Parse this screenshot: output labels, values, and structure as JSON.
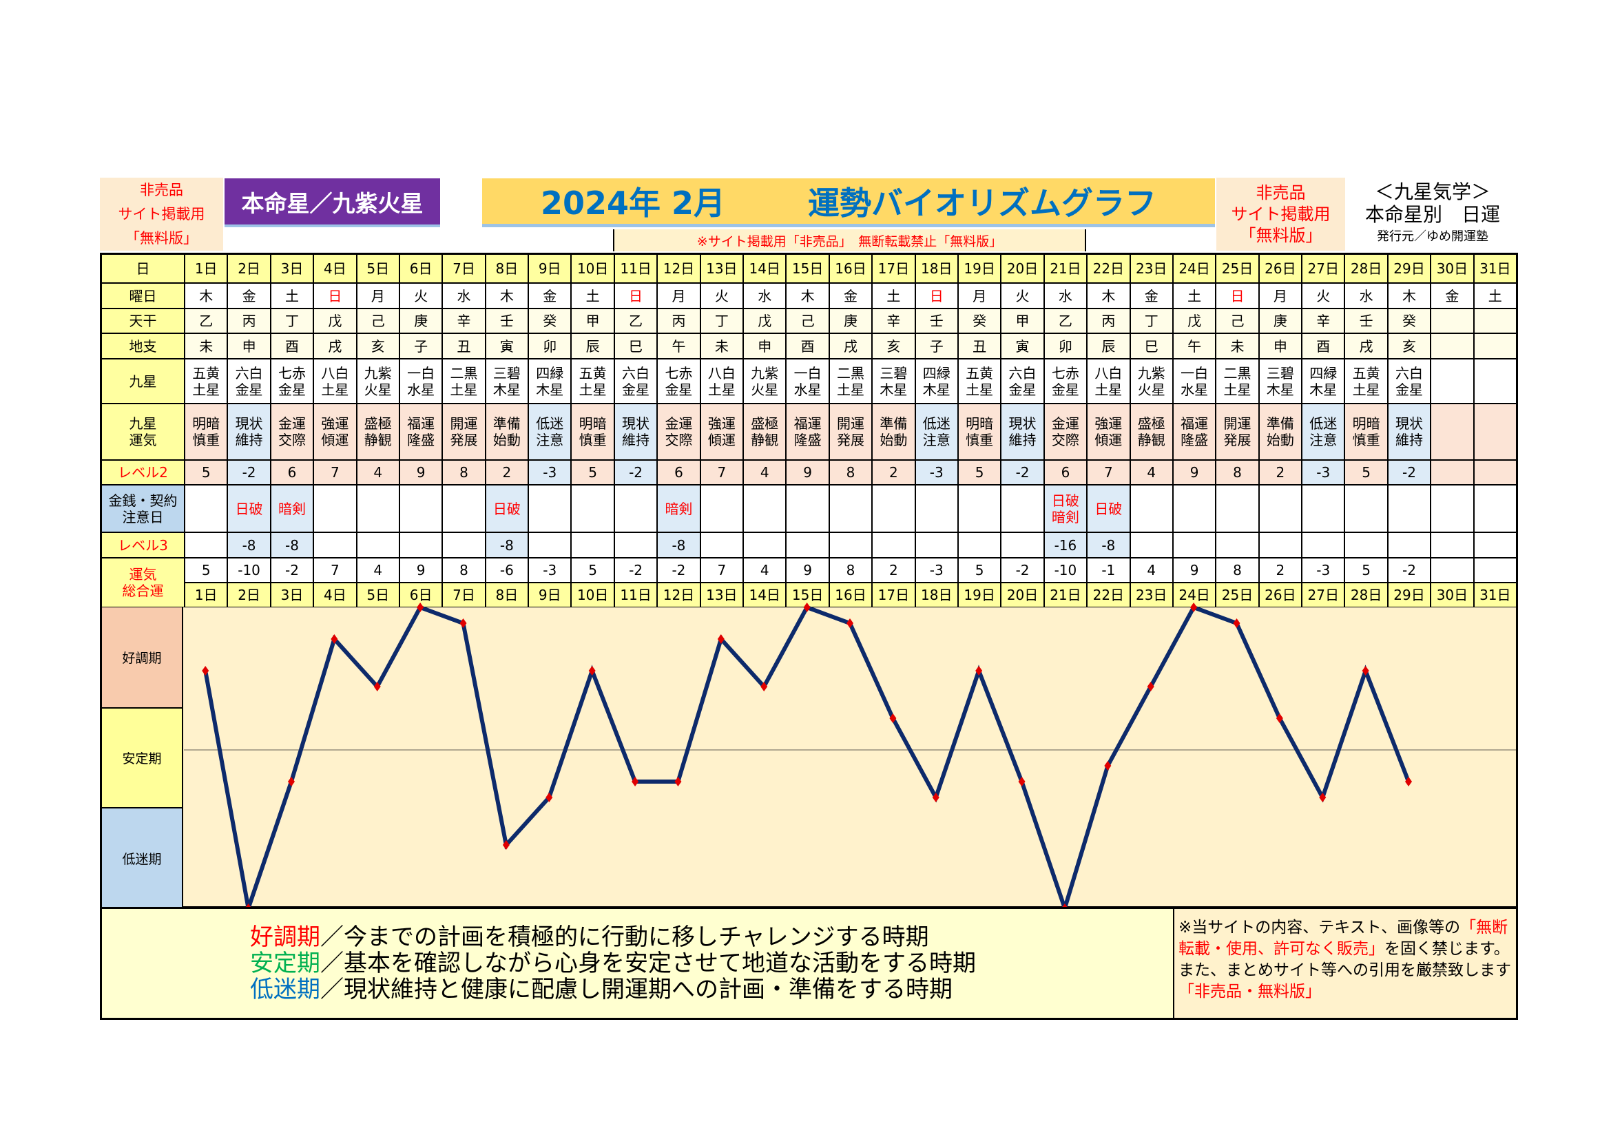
{
  "header": {
    "left_badge": [
      "非売品",
      "サイト掲載用",
      "「無料版」"
    ],
    "honmei": "本命星／九紫火星",
    "title_date": "2024年 2月",
    "title_main": "運勢バイオリズムグラフ",
    "notice": "※サイト掲載用「非売品」　無断転載禁止「無料版」",
    "right_badge": [
      "非売品",
      "サイト掲載用",
      "「無料版」"
    ],
    "right_title": "＜九星気学＞",
    "right_subtitle": "本命星別　日運",
    "publisher": "発行元／ゆめ開運塾"
  },
  "row_labels": {
    "day": "日",
    "weekday": "曜日",
    "tenkan": "天干",
    "chishi": "地支",
    "kyusei": "九星",
    "unki": "九星\n運気",
    "level2": "レベル2",
    "money": "金銭・契約\n注意日",
    "level3": "レベル3",
    "total": "運気\n総合運"
  },
  "days": [
    "1日",
    "2日",
    "3日",
    "4日",
    "5日",
    "6日",
    "7日",
    "8日",
    "9日",
    "10日",
    "11日",
    "12日",
    "13日",
    "14日",
    "15日",
    "16日",
    "17日",
    "18日",
    "19日",
    "20日",
    "21日",
    "22日",
    "23日",
    "24日",
    "25日",
    "26日",
    "27日",
    "28日",
    "29日",
    "30日",
    "31日"
  ],
  "weekdays": [
    "木",
    "金",
    "土",
    "日",
    "月",
    "火",
    "水",
    "木",
    "金",
    "土",
    "日",
    "月",
    "火",
    "水",
    "木",
    "金",
    "土",
    "日",
    "月",
    "火",
    "水",
    "木",
    "金",
    "土",
    "日",
    "月",
    "火",
    "水",
    "木",
    "金",
    "土"
  ],
  "sunday_color": "#ff0000",
  "tenkan": [
    "乙",
    "丙",
    "丁",
    "戊",
    "己",
    "庚",
    "辛",
    "壬",
    "癸",
    "甲",
    "乙",
    "丙",
    "丁",
    "戊",
    "己",
    "庚",
    "辛",
    "壬",
    "癸",
    "甲",
    "乙",
    "丙",
    "丁",
    "戊",
    "己",
    "庚",
    "辛",
    "壬",
    "癸",
    "",
    ""
  ],
  "chishi": [
    "未",
    "申",
    "酉",
    "戌",
    "亥",
    "子",
    "丑",
    "寅",
    "卯",
    "辰",
    "巳",
    "午",
    "未",
    "申",
    "酉",
    "戌",
    "亥",
    "子",
    "丑",
    "寅",
    "卯",
    "辰",
    "巳",
    "午",
    "未",
    "申",
    "酉",
    "戌",
    "亥",
    "",
    ""
  ],
  "kyusei": [
    "五黄\n土星",
    "六白\n金星",
    "七赤\n金星",
    "八白\n土星",
    "九紫\n火星",
    "一白\n水星",
    "二黒\n土星",
    "三碧\n木星",
    "四緑\n木星",
    "五黄\n土星",
    "六白\n金星",
    "七赤\n金星",
    "八白\n土星",
    "九紫\n火星",
    "一白\n水星",
    "二黒\n土星",
    "三碧\n木星",
    "四緑\n木星",
    "五黄\n土星",
    "六白\n金星",
    "七赤\n金星",
    "八白\n土星",
    "九紫\n火星",
    "一白\n水星",
    "二黒\n土星",
    "三碧\n木星",
    "四緑\n木星",
    "五黄\n土星",
    "六白\n金星",
    "",
    ""
  ],
  "unki": [
    "明暗\n慎重",
    "現状\n維持",
    "金運\n交際",
    "強運\n傾運",
    "盛極\n静観",
    "福運\n隆盛",
    "開運\n発展",
    "準備\n始動",
    "低迷\n注意",
    "明暗\n慎重",
    "現状\n維持",
    "金運\n交際",
    "強運\n傾運",
    "盛極\n静観",
    "福運\n隆盛",
    "開運\n発展",
    "準備\n始動",
    "低迷\n注意",
    "明暗\n慎重",
    "現状\n維持",
    "金運\n交際",
    "強運\n傾運",
    "盛極\n静観",
    "福運\n隆盛",
    "開運\n発展",
    "準備\n始動",
    "低迷\n注意",
    "明暗\n慎重",
    "現状\n維持",
    "",
    ""
  ],
  "level2": [
    5,
    -2,
    6,
    7,
    4,
    9,
    8,
    2,
    -3,
    5,
    -2,
    6,
    7,
    4,
    9,
    8,
    2,
    -3,
    5,
    -2,
    6,
    7,
    4,
    9,
    8,
    2,
    -3,
    5,
    -2,
    null,
    null
  ],
  "money": [
    "",
    "日破",
    "暗剣",
    "",
    "",
    "",
    "",
    "日破",
    "",
    "",
    "",
    "暗剣",
    "",
    "",
    "",
    "",
    "",
    "",
    "",
    "",
    "日破\n暗剣",
    "日破",
    "",
    "",
    "",
    "",
    "",
    "",
    "",
    "",
    ""
  ],
  "level3": [
    null,
    -8,
    -8,
    null,
    null,
    null,
    null,
    -8,
    null,
    null,
    null,
    -8,
    null,
    null,
    null,
    null,
    null,
    null,
    null,
    null,
    -16,
    -8,
    null,
    null,
    null,
    null,
    null,
    null,
    null,
    null,
    null
  ],
  "total": [
    5,
    -10,
    -2,
    7,
    4,
    9,
    8,
    -6,
    -3,
    5,
    -2,
    -2,
    7,
    4,
    9,
    8,
    2,
    -3,
    5,
    -2,
    -10,
    -1,
    4,
    9,
    8,
    2,
    -3,
    5,
    -2,
    null,
    null
  ],
  "chart_data": {
    "type": "line",
    "x": [
      "1日",
      "2日",
      "3日",
      "4日",
      "5日",
      "6日",
      "7日",
      "8日",
      "9日",
      "10日",
      "11日",
      "12日",
      "13日",
      "14日",
      "15日",
      "16日",
      "17日",
      "18日",
      "19日",
      "20日",
      "21日",
      "22日",
      "23日",
      "24日",
      "25日",
      "26日",
      "27日",
      "28日",
      "29日"
    ],
    "values": [
      5,
      -10,
      -2,
      7,
      4,
      9,
      8,
      -6,
      -3,
      5,
      -2,
      -2,
      7,
      4,
      9,
      8,
      2,
      -3,
      5,
      -2,
      -10,
      -1,
      4,
      9,
      8,
      2,
      -3,
      5,
      -2
    ],
    "ylim": [
      -10,
      9
    ],
    "bands": [
      "好調期",
      "安定期",
      "低迷期"
    ],
    "line_color": "#0d2a6b",
    "marker_color": "#e00000",
    "band_colors": [
      "#f8cbad",
      "#ffff99",
      "#bdd7ee"
    ]
  },
  "legend": [
    {
      "term": "好調期",
      "text": "／今までの計画を積極的に行動に移しチャレンジする時期",
      "color": "#ff0000"
    },
    {
      "term": "安定期",
      "text": "／基本を確認しながら心身を安定させて地道な活動をする時期",
      "color": "#00b050"
    },
    {
      "term": "低迷期",
      "text": "／現状維持と健康に配慮し開運期への計画・準備をする時期",
      "color": "#0070c0"
    }
  ],
  "copyright": {
    "line1": "※当サイトの内容、テキスト、画像等の",
    "red1": "「無断転載・使用、許可なく販売」",
    "line2": "を固く禁じます。また、まとめサイト等への引用を厳禁致します",
    "red2": "「非売品・無料版」"
  }
}
